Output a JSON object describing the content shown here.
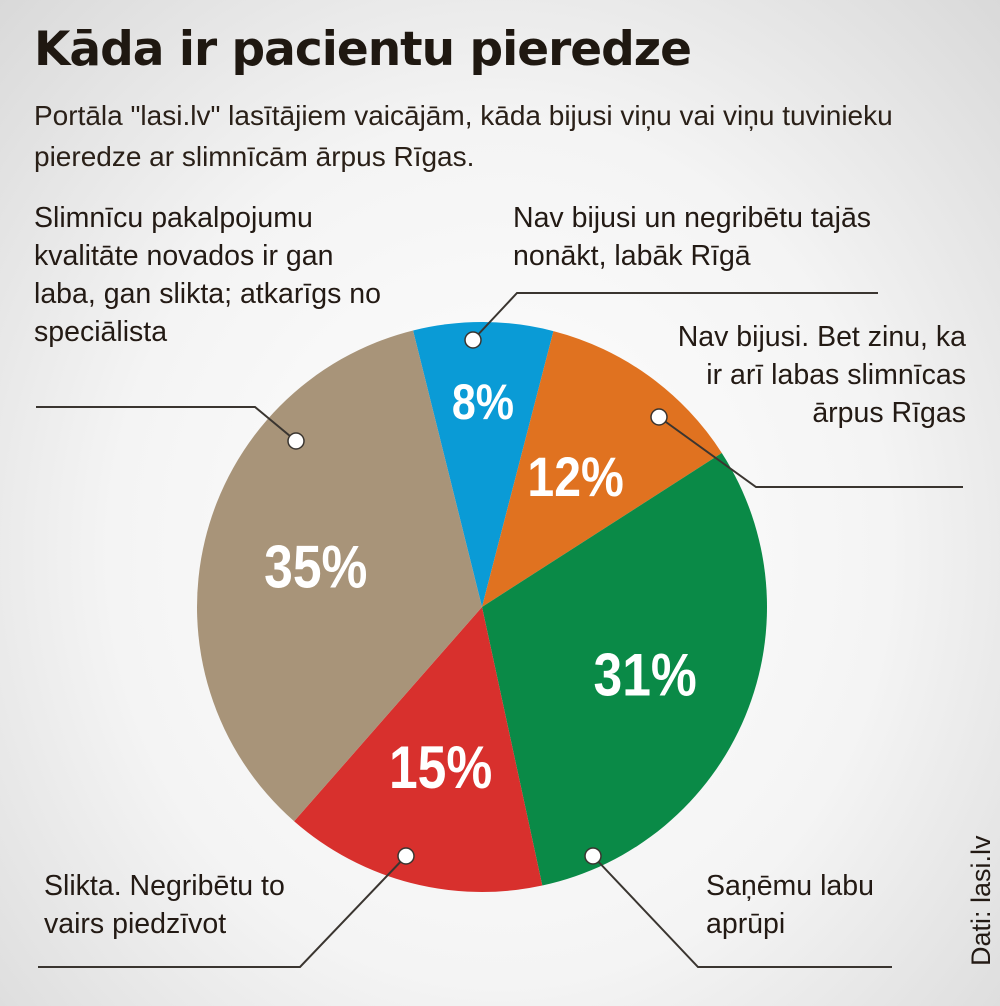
{
  "title": "Kāda ir pacientu pieredze",
  "subtitle": "Portāla \"lasi.lv\" lasītājiem vaicājām, kāda bijusi viņu vai viņu tuvinieku pieredze ar slimnīcām ārpus Rīgas.",
  "source": "Dati: lasi.lv",
  "colors": {
    "blue": "#0a9bd6",
    "orange": "#e07220",
    "green": "#0a8a47",
    "red": "#d8302d",
    "tan": "#a89479",
    "leader": "#3a3530"
  },
  "chart_data": {
    "type": "pie",
    "unit": "%",
    "slices": [
      {
        "label": "Nav bijusi un negribētu tajās nonākt, labāk Rīgā",
        "value": 8,
        "display": "8%",
        "color": "#0a9bd6"
      },
      {
        "label": "Nav bijusi. Bet zinu, ka ir arī labas slimnīcas ārpus Rīgas",
        "value": 12,
        "display": "12%",
        "color": "#e07220"
      },
      {
        "label": "Saņēmu labu aprūpi",
        "value": 31,
        "display": "31%",
        "color": "#0a8a47"
      },
      {
        "label": "Slikta. Negribētu to vairs piedzīvot",
        "value": 15,
        "display": "15%",
        "color": "#d8302d"
      },
      {
        "label": "Slimnīcu pakalpojumu kvalitāte novados ir gan laba, gan slikta; atkarīgs no speciālista",
        "value": 35,
        "display": "35%",
        "color": "#a89479"
      }
    ]
  },
  "labels": {
    "mixed": "Slimnīcu pakalpojumu kvalitāte novados ir gan laba, gan slikta; atkarīgs no speciālista",
    "no_riga": "Nav bijusi un negribētu tajās nonākt, labāk Rīgā",
    "no_good": "Nav bijusi. Bet zinu, ka ir arī labas slimnīcas ārpus Rīgas",
    "bad": "Slikta. Negribētu to vairs piedzīvot",
    "good": "Saņēmu labu aprūpi"
  }
}
